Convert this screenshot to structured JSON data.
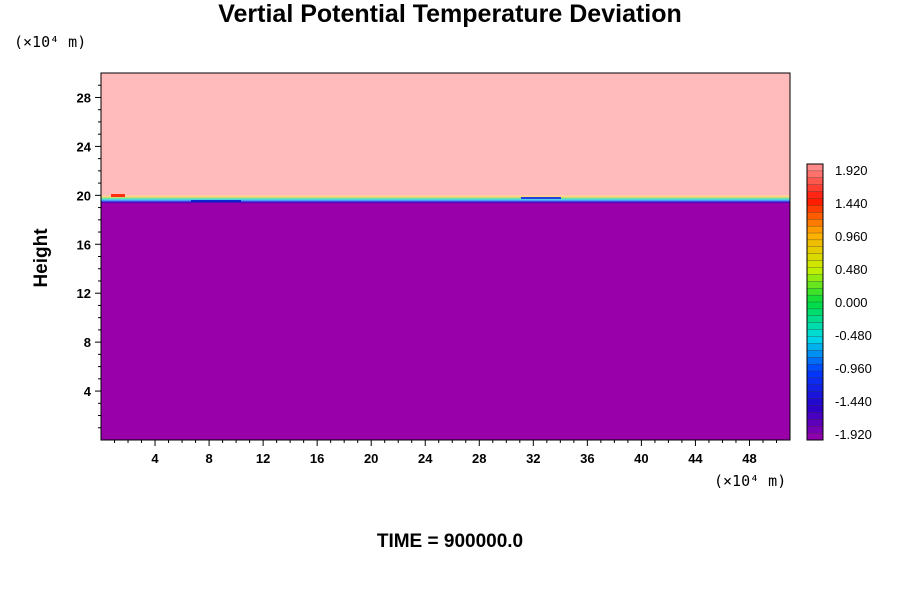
{
  "chart_data": {
    "type": "heatmap",
    "title": "Vertial Potential Temperature Deviation",
    "ylabel": "Height",
    "y_unit": "(×10⁴ m)",
    "x_unit": "(×10⁴ m)",
    "footer": "TIME = 900000.0",
    "xlim": [
      0,
      51
    ],
    "ylim": [
      0,
      30
    ],
    "x_ticks": [
      4,
      8,
      12,
      16,
      20,
      24,
      28,
      32,
      36,
      40,
      44,
      48
    ],
    "y_ticks": [
      4,
      8,
      12,
      16,
      20,
      24,
      28
    ],
    "x_tick_labels": [
      "4",
      "8",
      "12",
      "16",
      "20",
      "24",
      "28",
      "32",
      "36",
      "40",
      "44",
      "48"
    ],
    "y_tick_labels": [
      "4",
      "8",
      "12",
      "16",
      "20",
      "24",
      "28"
    ],
    "regions": [
      {
        "value": -1.92,
        "y_range": [
          0,
          19.5
        ],
        "color": "#9900aa"
      },
      {
        "value": 1.92,
        "y_range": [
          19.8,
          30
        ],
        "color": "#ffbbbb"
      }
    ],
    "interface_height": 19.7,
    "colorbar": {
      "min": -1.92,
      "max": 1.92,
      "levels": 40,
      "labels": [
        "1.920",
        "1.440",
        "0.960",
        "0.480",
        "0.000",
        "-0.480",
        "-0.960",
        "-1.440",
        "-1.920"
      ]
    }
  }
}
